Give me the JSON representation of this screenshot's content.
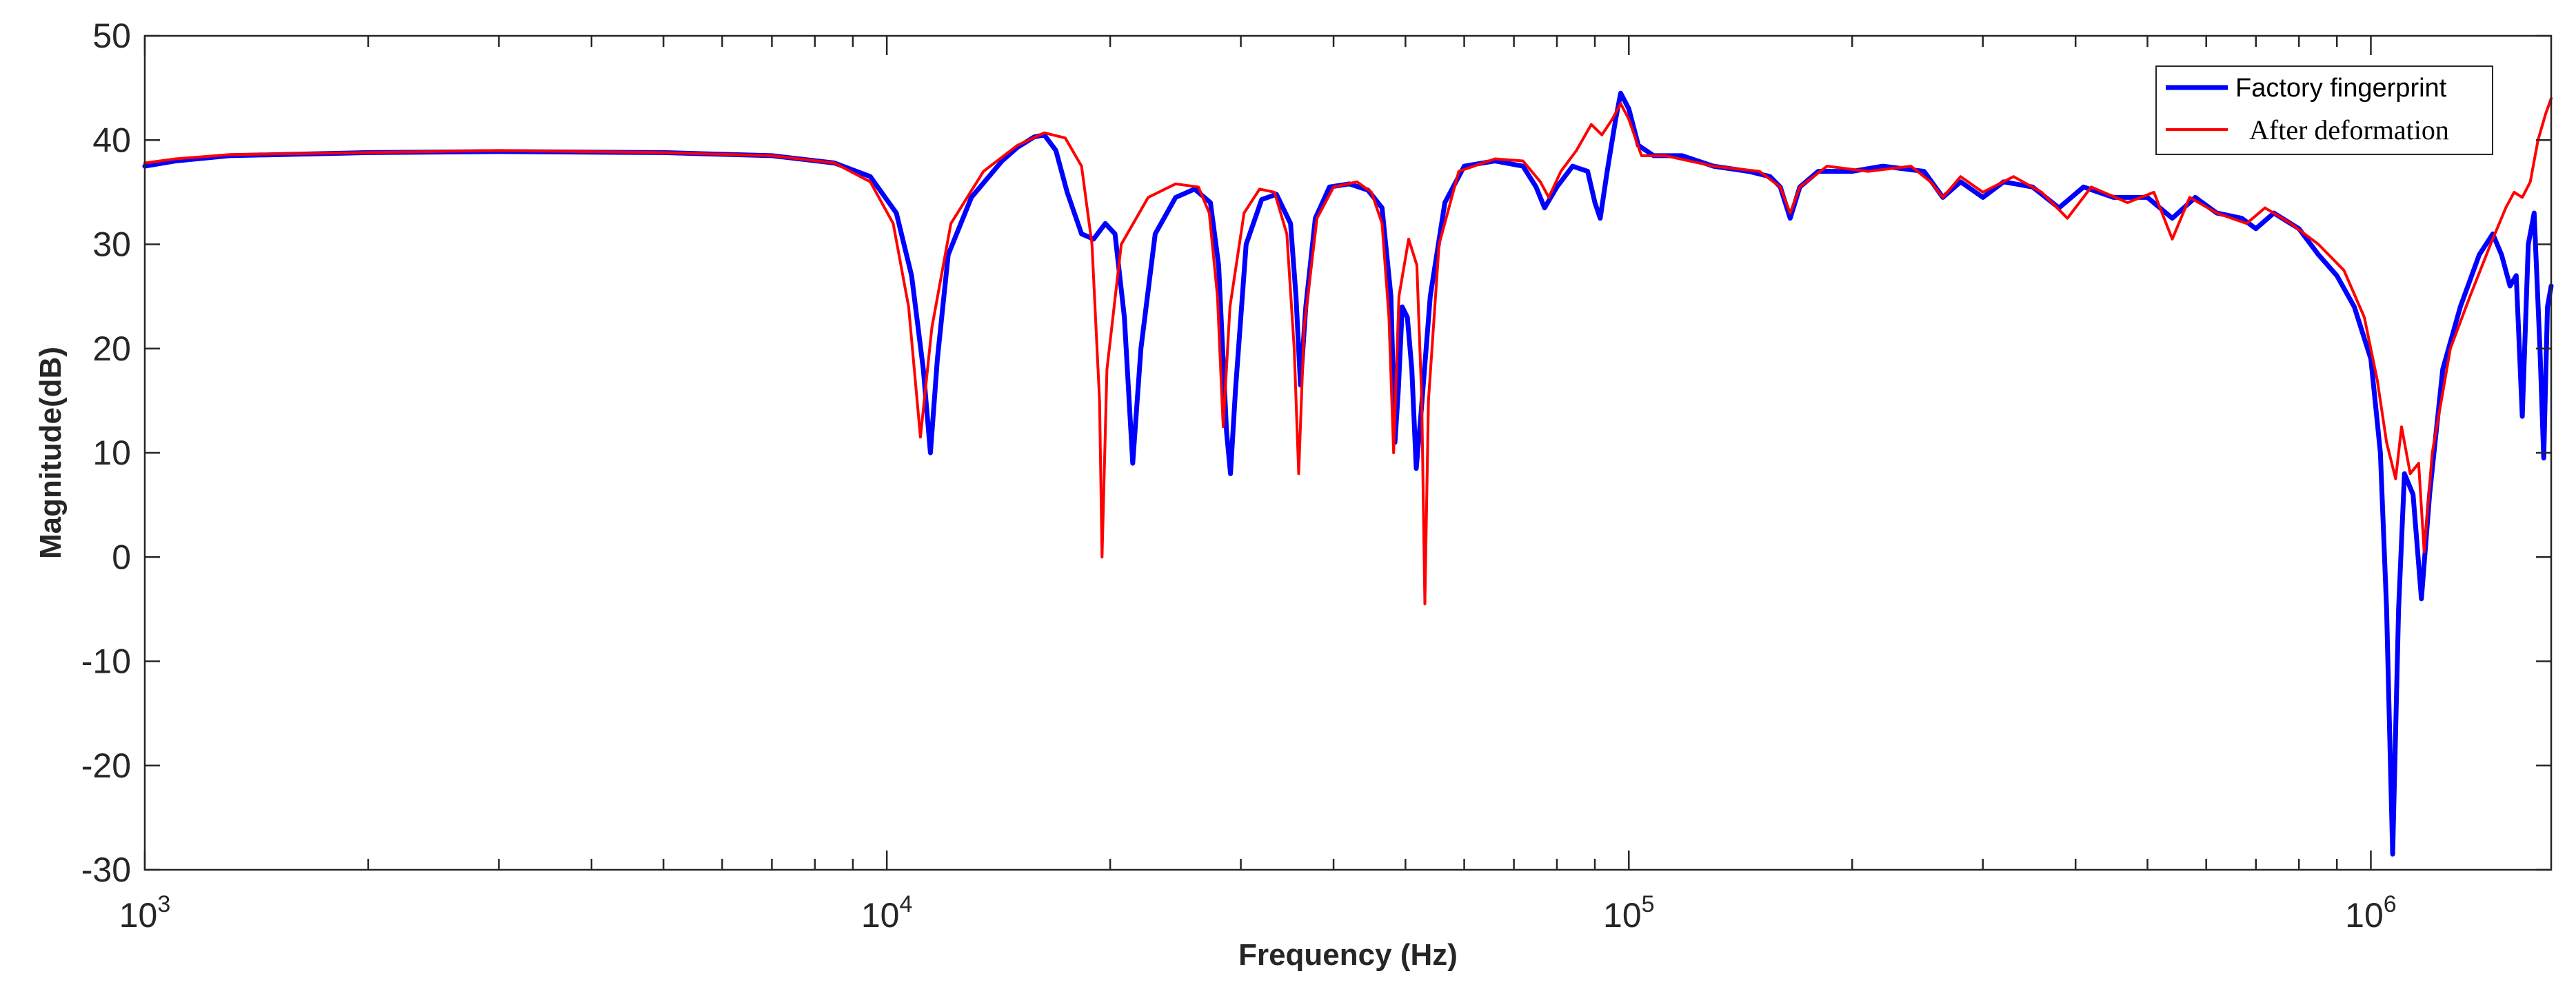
{
  "chart_data": {
    "type": "line",
    "title": "",
    "xlabel": "Frequency (Hz)",
    "ylabel": "Magnitude(dB)",
    "xscale": "log",
    "xlim": [
      1000,
      1750000
    ],
    "ylim": [
      -30,
      50
    ],
    "yticks": [
      -30,
      -20,
      -10,
      0,
      10,
      20,
      30,
      40,
      50
    ],
    "yticklabels": [
      "-30",
      "-20",
      "-10",
      "0",
      "10",
      "20",
      "30",
      "40",
      "50"
    ],
    "xticks": [
      {
        "value": 1000,
        "base": "10",
        "exp": "3"
      },
      {
        "value": 10000,
        "base": "10",
        "exp": "4"
      },
      {
        "value": 100000,
        "base": "10",
        "exp": "5"
      },
      {
        "value": 1000000,
        "base": "10",
        "exp": "6"
      }
    ],
    "grid": false,
    "legend_position": "top-right",
    "series": [
      {
        "name": "Factory fingerprint",
        "color": "#0000ff",
        "points": [
          [
            1000,
            37.5
          ],
          [
            1100,
            38
          ],
          [
            1300,
            38.5
          ],
          [
            2000,
            38.8
          ],
          [
            3000,
            38.9
          ],
          [
            5000,
            38.8
          ],
          [
            7000,
            38.5
          ],
          [
            8500,
            37.8
          ],
          [
            9500,
            36.5
          ],
          [
            10300,
            33
          ],
          [
            10800,
            27
          ],
          [
            11200,
            18
          ],
          [
            11450,
            10
          ],
          [
            11700,
            19
          ],
          [
            12100,
            29
          ],
          [
            13000,
            34.5
          ],
          [
            14300,
            38
          ],
          [
            15000,
            39.3
          ],
          [
            15800,
            40.3
          ],
          [
            16300,
            40.5
          ],
          [
            16900,
            39
          ],
          [
            17500,
            35
          ],
          [
            18300,
            31
          ],
          [
            19000,
            30.5
          ],
          [
            19700,
            32
          ],
          [
            20300,
            31
          ],
          [
            20900,
            23
          ],
          [
            21450,
            9
          ],
          [
            22000,
            20
          ],
          [
            23000,
            31
          ],
          [
            24500,
            34.5
          ],
          [
            26000,
            35.3
          ],
          [
            27300,
            34
          ],
          [
            28000,
            28
          ],
          [
            28700,
            12
          ],
          [
            29050,
            8
          ],
          [
            29500,
            16
          ],
          [
            30500,
            30
          ],
          [
            32000,
            34.3
          ],
          [
            33500,
            34.8
          ],
          [
            35000,
            32
          ],
          [
            35600,
            25
          ],
          [
            36100,
            16.5
          ],
          [
            36700,
            24
          ],
          [
            37800,
            32.5
          ],
          [
            39500,
            35.5
          ],
          [
            42000,
            35.8
          ],
          [
            44500,
            35.2
          ],
          [
            46500,
            33.5
          ],
          [
            47800,
            25
          ],
          [
            48400,
            11
          ],
          [
            48900,
            16
          ],
          [
            49500,
            24
          ],
          [
            50300,
            23
          ],
          [
            51000,
            18
          ],
          [
            51700,
            8.5
          ],
          [
            52500,
            14
          ],
          [
            54000,
            25
          ],
          [
            56500,
            34
          ],
          [
            60000,
            37.5
          ],
          [
            66000,
            38
          ],
          [
            72000,
            37.5
          ],
          [
            75000,
            35.5
          ],
          [
            77000,
            33.5
          ],
          [
            80000,
            35.5
          ],
          [
            84000,
            37.5
          ],
          [
            88000,
            37
          ],
          [
            90000,
            34
          ],
          [
            91500,
            32.5
          ],
          [
            93500,
            37
          ],
          [
            96000,
            42
          ],
          [
            97500,
            44.5
          ],
          [
            100000,
            43
          ],
          [
            103000,
            39.5
          ],
          [
            108000,
            38.5
          ],
          [
            118000,
            38.5
          ],
          [
            130000,
            37.5
          ],
          [
            145000,
            37
          ],
          [
            155000,
            36.5
          ],
          [
            160000,
            35.5
          ],
          [
            165000,
            32.5
          ],
          [
            170000,
            35.5
          ],
          [
            180000,
            37
          ],
          [
            200000,
            37
          ],
          [
            220000,
            37.5
          ],
          [
            250000,
            37
          ],
          [
            265000,
            34.5
          ],
          [
            280000,
            36
          ],
          [
            300000,
            34.5
          ],
          [
            320000,
            36
          ],
          [
            350000,
            35.5
          ],
          [
            380000,
            33.5
          ],
          [
            410000,
            35.5
          ],
          [
            450000,
            34.5
          ],
          [
            500000,
            34.5
          ],
          [
            540000,
            32.5
          ],
          [
            580000,
            34.5
          ],
          [
            620000,
            33
          ],
          [
            670000,
            32.5
          ],
          [
            700000,
            31.5
          ],
          [
            740000,
            33
          ],
          [
            800000,
            31.5
          ],
          [
            850000,
            29
          ],
          [
            900000,
            27
          ],
          [
            950000,
            24
          ],
          [
            1000000,
            19
          ],
          [
            1030000,
            10
          ],
          [
            1050000,
            -5
          ],
          [
            1070000,
            -28.5
          ],
          [
            1090000,
            -5
          ],
          [
            1110000,
            8
          ],
          [
            1140000,
            6
          ],
          [
            1170000,
            -4
          ],
          [
            1200000,
            6
          ],
          [
            1250000,
            18
          ],
          [
            1320000,
            24
          ],
          [
            1400000,
            29
          ],
          [
            1460000,
            31
          ],
          [
            1500000,
            29
          ],
          [
            1540000,
            26
          ],
          [
            1570000,
            27
          ],
          [
            1600000,
            13.5
          ],
          [
            1630000,
            30
          ],
          [
            1660000,
            33
          ],
          [
            1690000,
            20
          ],
          [
            1710000,
            9.5
          ],
          [
            1730000,
            24
          ],
          [
            1750000,
            26
          ]
        ]
      },
      {
        "name": "After deformation",
        "color": "#ff0000",
        "points": [
          [
            1000,
            37.8
          ],
          [
            1100,
            38.2
          ],
          [
            1300,
            38.6
          ],
          [
            2000,
            38.8
          ],
          [
            3000,
            39
          ],
          [
            5000,
            38.8
          ],
          [
            7000,
            38.5
          ],
          [
            8500,
            37.8
          ],
          [
            9500,
            36
          ],
          [
            10200,
            32
          ],
          [
            10700,
            24
          ],
          [
            11100,
            11.5
          ],
          [
            11500,
            22
          ],
          [
            12200,
            32
          ],
          [
            13500,
            37
          ],
          [
            15000,
            39.5
          ],
          [
            16300,
            40.7
          ],
          [
            17400,
            40.2
          ],
          [
            18300,
            37.5
          ],
          [
            18900,
            30
          ],
          [
            19350,
            15
          ],
          [
            19500,
            0
          ],
          [
            19800,
            18
          ],
          [
            20700,
            30
          ],
          [
            22500,
            34.5
          ],
          [
            24500,
            35.8
          ],
          [
            26300,
            35.5
          ],
          [
            27200,
            33
          ],
          [
            27900,
            25
          ],
          [
            28400,
            12.5
          ],
          [
            29000,
            24
          ],
          [
            30300,
            33
          ],
          [
            31800,
            35.3
          ],
          [
            33300,
            35
          ],
          [
            34600,
            31
          ],
          [
            35400,
            20
          ],
          [
            35900,
            8
          ],
          [
            36500,
            22
          ],
          [
            38000,
            32.5
          ],
          [
            40000,
            35.5
          ],
          [
            43000,
            36
          ],
          [
            45000,
            35
          ],
          [
            46500,
            32
          ],
          [
            47500,
            23
          ],
          [
            48200,
            10
          ],
          [
            49000,
            25
          ],
          [
            50500,
            30.5
          ],
          [
            51800,
            28
          ],
          [
            52600,
            15
          ],
          [
            53100,
            -4.5
          ],
          [
            53700,
            15
          ],
          [
            55500,
            30
          ],
          [
            59000,
            37
          ],
          [
            66000,
            38.2
          ],
          [
            72000,
            38
          ],
          [
            76000,
            36
          ],
          [
            78000,
            34.5
          ],
          [
            81000,
            37
          ],
          [
            85000,
            39
          ],
          [
            89000,
            41.5
          ],
          [
            92000,
            40.5
          ],
          [
            95000,
            42
          ],
          [
            97500,
            43.5
          ],
          [
            100000,
            42
          ],
          [
            104000,
            38.5
          ],
          [
            112000,
            38.5
          ],
          [
            130000,
            37.5
          ],
          [
            150000,
            37
          ],
          [
            160000,
            35.5
          ],
          [
            165000,
            33
          ],
          [
            170000,
            35.5
          ],
          [
            185000,
            37.5
          ],
          [
            210000,
            37
          ],
          [
            240000,
            37.5
          ],
          [
            255000,
            36
          ],
          [
            265000,
            34.5
          ],
          [
            280000,
            36.5
          ],
          [
            300000,
            35
          ],
          [
            330000,
            36.5
          ],
          [
            360000,
            35
          ],
          [
            390000,
            32.5
          ],
          [
            420000,
            35.5
          ],
          [
            470000,
            34
          ],
          [
            510000,
            35
          ],
          [
            540000,
            30.5
          ],
          [
            570000,
            34.5
          ],
          [
            620000,
            33
          ],
          [
            680000,
            32
          ],
          [
            720000,
            33.5
          ],
          [
            780000,
            32
          ],
          [
            850000,
            30
          ],
          [
            920000,
            27.5
          ],
          [
            980000,
            23
          ],
          [
            1020000,
            17
          ],
          [
            1050000,
            11
          ],
          [
            1080000,
            7.5
          ],
          [
            1100000,
            12.5
          ],
          [
            1130000,
            8
          ],
          [
            1160000,
            9
          ],
          [
            1180000,
            0.5
          ],
          [
            1210000,
            10
          ],
          [
            1280000,
            20
          ],
          [
            1360000,
            25
          ],
          [
            1450000,
            30
          ],
          [
            1520000,
            33.5
          ],
          [
            1560000,
            35
          ],
          [
            1600000,
            34.5
          ],
          [
            1640000,
            36
          ],
          [
            1680000,
            40
          ],
          [
            1720000,
            42.5
          ],
          [
            1750000,
            44
          ]
        ]
      }
    ]
  }
}
